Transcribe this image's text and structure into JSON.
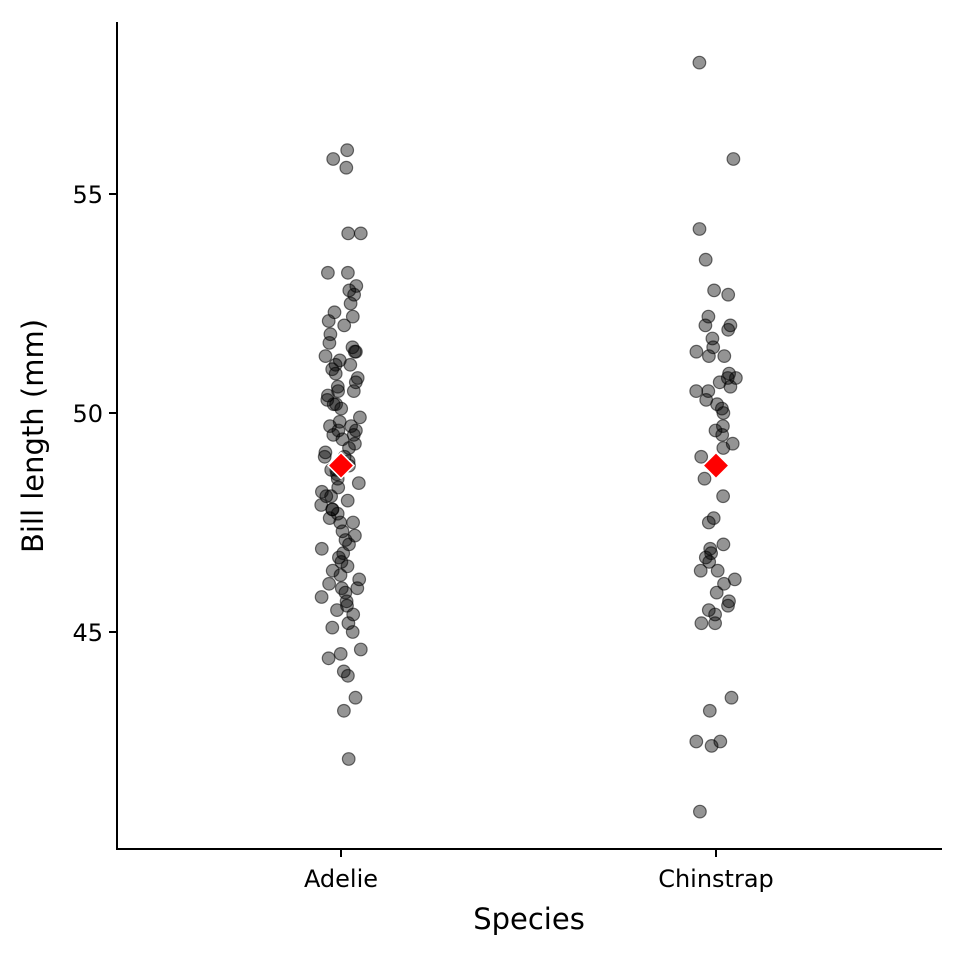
{
  "chart_data": {
    "type": "scatter",
    "title": "",
    "xlabel": "Species",
    "ylabel": "Bill length (mm)",
    "categories": [
      "Adelie",
      "Chinstrap"
    ],
    "ylim": [
      40.2,
      59.0
    ],
    "yticks": [
      45,
      50,
      55
    ],
    "grid": false,
    "legend": "none",
    "point_color": "#000000",
    "mean_color": "#ff0000",
    "series": [
      {
        "category": "Adelie",
        "values": [
          56.0,
          55.8,
          55.6,
          54.1,
          54.1,
          53.2,
          53.2,
          52.9,
          52.8,
          52.7,
          52.5,
          52.3,
          52.2,
          52.1,
          52.0,
          51.8,
          51.6,
          51.5,
          51.4,
          51.4,
          51.3,
          51.2,
          51.1,
          51.1,
          51.0,
          50.9,
          50.8,
          50.7,
          50.6,
          50.5,
          50.5,
          50.4,
          50.3,
          50.2,
          50.2,
          50.1,
          49.9,
          49.8,
          49.7,
          49.7,
          49.6,
          49.6,
          49.5,
          49.5,
          49.4,
          49.3,
          49.2,
          49.1,
          49.0,
          49.0,
          48.9,
          48.8,
          48.8,
          48.7,
          48.7,
          48.6,
          48.5,
          48.4,
          48.3,
          48.2,
          48.1,
          48.1,
          48.0,
          47.9,
          47.8,
          47.8,
          47.7,
          47.6,
          47.5,
          47.5,
          47.3,
          47.2,
          47.1,
          47.0,
          46.9,
          46.8,
          46.7,
          46.6,
          46.5,
          46.4,
          46.3,
          46.2,
          46.1,
          46.0,
          46.0,
          45.9,
          45.8,
          45.7,
          45.6,
          45.5,
          45.4,
          45.2,
          45.1,
          45.0,
          44.6,
          44.5,
          44.4,
          44.1,
          44.0,
          43.5,
          43.2,
          42.1
        ]
      },
      {
        "category": "Chinstrap",
        "values": [
          58.0,
          55.8,
          54.2,
          53.5,
          52.8,
          52.7,
          52.2,
          52.0,
          52.0,
          51.9,
          51.7,
          51.5,
          51.4,
          51.3,
          51.3,
          50.9,
          50.8,
          50.8,
          50.7,
          50.6,
          50.5,
          50.5,
          50.3,
          50.2,
          50.1,
          50.0,
          49.7,
          49.6,
          49.5,
          49.3,
          49.2,
          49.0,
          48.8,
          48.5,
          48.1,
          47.6,
          47.5,
          47.0,
          46.9,
          46.8,
          46.7,
          46.6,
          46.4,
          46.4,
          46.2,
          46.1,
          45.9,
          45.7,
          45.6,
          45.5,
          45.4,
          45.2,
          45.2,
          43.5,
          43.2,
          42.5,
          42.5,
          42.4,
          40.9
        ]
      }
    ],
    "means": [
      {
        "category": "Adelie",
        "value": 48.8
      },
      {
        "category": "Chinstrap",
        "value": 48.8
      }
    ]
  }
}
